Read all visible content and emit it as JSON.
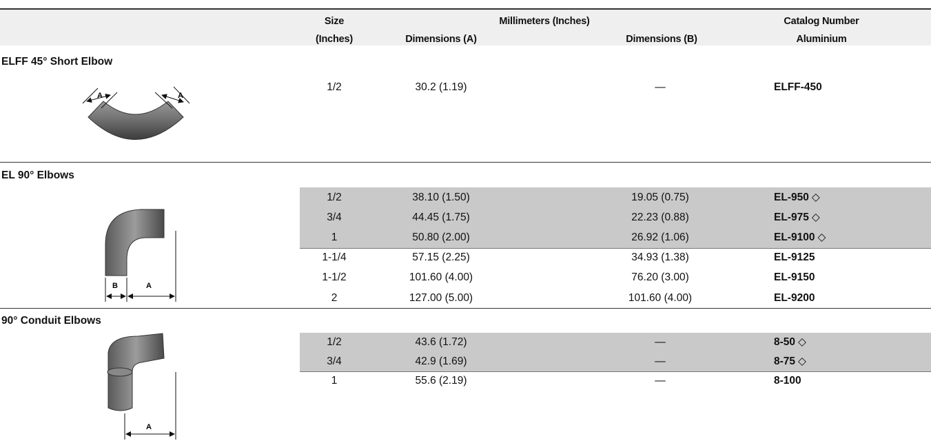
{
  "header": {
    "size": "Size",
    "size_unit": "(Inches)",
    "millimeters": "Millimeters (Inches)",
    "dim_a": "Dimensions (A)",
    "dim_b": "Dimensions (B)",
    "catalog": "Catalog Number",
    "material": "Aluminium"
  },
  "sections": [
    {
      "title": "ELFF 45° Short Elbow",
      "figure_labels": [
        "A",
        "A"
      ],
      "rows": [
        {
          "size": "1/2",
          "dim_a": "30.2 (1.19)",
          "dim_b": "—",
          "catalog": "ELFF-450",
          "shaded": false
        }
      ]
    },
    {
      "title": "EL 90° Elbows",
      "figure_labels": [
        "B",
        "A"
      ],
      "rows": [
        {
          "size": "1/2",
          "dim_a": "38.10 (1.50)",
          "dim_b": "19.05 (0.75)",
          "catalog": "EL-950",
          "note": "◇",
          "shaded": true
        },
        {
          "size": "3/4",
          "dim_a": "44.45 (1.75)",
          "dim_b": "22.23 (0.88)",
          "catalog": "EL-975",
          "note": "◇",
          "shaded": true
        },
        {
          "size": "1",
          "dim_a": "50.80 (2.00)",
          "dim_b": "26.92 (1.06)",
          "catalog": "EL-9100",
          "note": "◇",
          "shaded": true
        },
        {
          "size": "1-1/4",
          "dim_a": "57.15 (2.25)",
          "dim_b": "34.93 (1.38)",
          "catalog": "EL-9125",
          "shaded": false
        },
        {
          "size": "1-1/2",
          "dim_a": "101.60 (4.00)",
          "dim_b": "76.20 (3.00)",
          "catalog": "EL-9150",
          "shaded": false
        },
        {
          "size": "2",
          "dim_a": "127.00 (5.00)",
          "dim_b": "101.60 (4.00)",
          "catalog": "EL-9200",
          "shaded": false
        }
      ]
    },
    {
      "title": "90° Conduit Elbows",
      "figure_labels": [
        "A"
      ],
      "rows": [
        {
          "size": "1/2",
          "dim_a": "43.6 (1.72)",
          "dim_b": "—",
          "catalog": "8-50",
          "note": "◇",
          "shaded": true
        },
        {
          "size": "3/4",
          "dim_a": "42.9 (1.69)",
          "dim_b": "—",
          "catalog": "8-75",
          "note": "◇",
          "shaded": true
        },
        {
          "size": "1",
          "dim_a": "55.6 (2.19)",
          "dim_b": "—",
          "catalog": "8-100",
          "shaded": false
        }
      ]
    }
  ]
}
